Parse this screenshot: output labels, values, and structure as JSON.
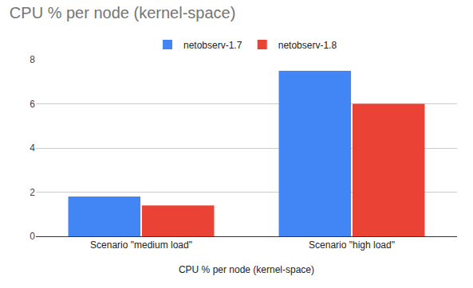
{
  "chart_data": {
    "type": "bar",
    "title": "CPU % per node (kernel-space)",
    "x_label": "CPU % per node (kernel-space)",
    "categories": [
      "Scenario \"medium load\"",
      "Scenario \"high load\""
    ],
    "series": [
      {
        "name": "netobserv-1.7",
        "color": "#4285f4",
        "values": [
          1.8,
          7.5
        ]
      },
      {
        "name": "netobserv-1.8",
        "color": "#ea4335",
        "values": [
          1.4,
          6.0
        ]
      }
    ],
    "ylim": [
      0,
      8
    ],
    "yticks": [
      0,
      2,
      4,
      6,
      8
    ],
    "grid": true,
    "legend": "top"
  }
}
